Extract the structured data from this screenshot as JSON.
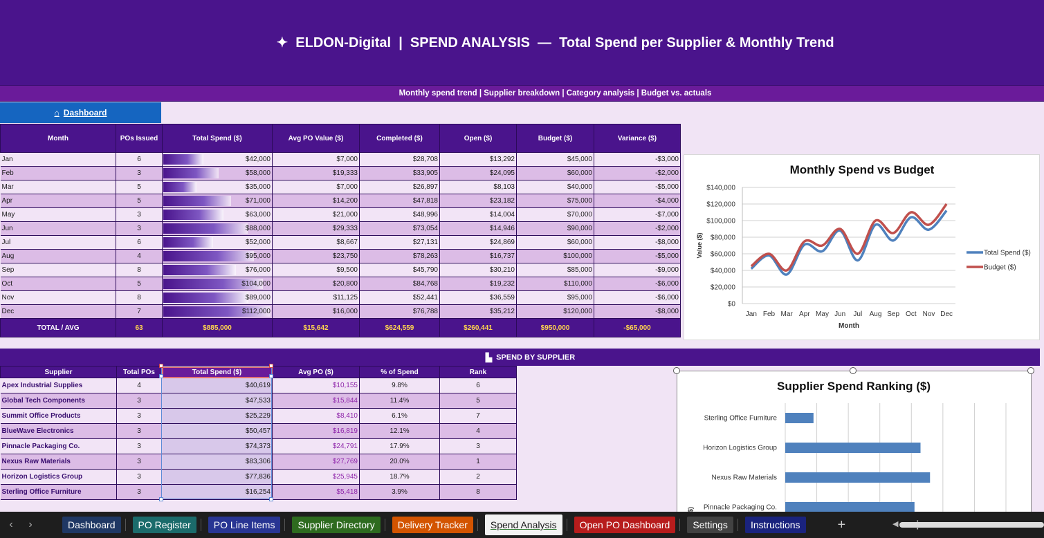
{
  "header": {
    "title": "✦  ELDON-Digital  |  SPEND ANALYSIS  —  Total Spend per Supplier & Monthly Trend",
    "subtitle": "Monthly spend trend  |  Supplier breakdown  |  Category analysis  |  Budget vs. actuals"
  },
  "dashboard_link": {
    "label": "Dashboard",
    "icon": "house-icon"
  },
  "monthly_table": {
    "headers": [
      "Month",
      "POs Issued",
      "Total Spend ($)",
      "Avg PO Value ($)",
      "Completed ($)",
      "Open ($)",
      "Budget ($)",
      "Variance ($)"
    ],
    "rows": [
      {
        "month": "Jan",
        "pos": "6",
        "spend": "$42,000",
        "avg": "$7,000",
        "completed": "$28,708",
        "open": "$13,292",
        "budget": "$45,000",
        "variance": "-$3,000",
        "spend_value": 42000
      },
      {
        "month": "Feb",
        "pos": "3",
        "spend": "$58,000",
        "avg": "$19,333",
        "completed": "$33,905",
        "open": "$24,095",
        "budget": "$60,000",
        "variance": "-$2,000",
        "spend_value": 58000
      },
      {
        "month": "Mar",
        "pos": "5",
        "spend": "$35,000",
        "avg": "$7,000",
        "completed": "$26,897",
        "open": "$8,103",
        "budget": "$40,000",
        "variance": "-$5,000",
        "spend_value": 35000
      },
      {
        "month": "Apr",
        "pos": "5",
        "spend": "$71,000",
        "avg": "$14,200",
        "completed": "$47,818",
        "open": "$23,182",
        "budget": "$75,000",
        "variance": "-$4,000",
        "spend_value": 71000
      },
      {
        "month": "May",
        "pos": "3",
        "spend": "$63,000",
        "avg": "$21,000",
        "completed": "$48,996",
        "open": "$14,004",
        "budget": "$70,000",
        "variance": "-$7,000",
        "spend_value": 63000
      },
      {
        "month": "Jun",
        "pos": "3",
        "spend": "$88,000",
        "avg": "$29,333",
        "completed": "$73,054",
        "open": "$14,946",
        "budget": "$90,000",
        "variance": "-$2,000",
        "spend_value": 88000
      },
      {
        "month": "Jul",
        "pos": "6",
        "spend": "$52,000",
        "avg": "$8,667",
        "completed": "$27,131",
        "open": "$24,869",
        "budget": "$60,000",
        "variance": "-$8,000",
        "spend_value": 52000
      },
      {
        "month": "Aug",
        "pos": "4",
        "spend": "$95,000",
        "avg": "$23,750",
        "completed": "$78,263",
        "open": "$16,737",
        "budget": "$100,000",
        "variance": "-$5,000",
        "spend_value": 95000
      },
      {
        "month": "Sep",
        "pos": "8",
        "spend": "$76,000",
        "avg": "$9,500",
        "completed": "$45,790",
        "open": "$30,210",
        "budget": "$85,000",
        "variance": "-$9,000",
        "spend_value": 76000
      },
      {
        "month": "Oct",
        "pos": "5",
        "spend": "$104,000",
        "avg": "$20,800",
        "completed": "$84,768",
        "open": "$19,232",
        "budget": "$110,000",
        "variance": "-$6,000",
        "spend_value": 104000
      },
      {
        "month": "Nov",
        "pos": "8",
        "spend": "$89,000",
        "avg": "$11,125",
        "completed": "$52,441",
        "open": "$36,559",
        "budget": "$95,000",
        "variance": "-$6,000",
        "spend_value": 89000
      },
      {
        "month": "Dec",
        "pos": "7",
        "spend": "$112,000",
        "avg": "$16,000",
        "completed": "$76,788",
        "open": "$35,212",
        "budget": "$120,000",
        "variance": "-$8,000",
        "spend_value": 112000
      }
    ],
    "total": {
      "label": "TOTAL / AVG",
      "pos": "63",
      "spend": "$885,000",
      "avg": "$15,642",
      "completed": "$624,559",
      "open": "$260,441",
      "budget": "$950,000",
      "variance": "-$65,000"
    },
    "bar_max": 112000
  },
  "supplier_banner": {
    "label": "SPEND BY SUPPLIER",
    "icon": "factory-icon"
  },
  "supplier_table": {
    "headers": [
      "Supplier",
      "Total POs",
      "Total Spend ($)",
      "Avg PO ($)",
      "% of Spend",
      "Rank"
    ],
    "rows": [
      {
        "name": "Apex Industrial Supplies",
        "pos": "4",
        "spend": "$40,619",
        "avg": "$10,155",
        "pct": "9.8%",
        "rank": "6"
      },
      {
        "name": "Global Tech Components",
        "pos": "3",
        "spend": "$47,533",
        "avg": "$15,844",
        "pct": "11.4%",
        "rank": "5"
      },
      {
        "name": "Summit Office Products",
        "pos": "3",
        "spend": "$25,229",
        "avg": "$8,410",
        "pct": "6.1%",
        "rank": "7"
      },
      {
        "name": "BlueWave Electronics",
        "pos": "3",
        "spend": "$50,457",
        "avg": "$16,819",
        "pct": "12.1%",
        "rank": "4"
      },
      {
        "name": "Pinnacle Packaging Co.",
        "pos": "3",
        "spend": "$74,373",
        "avg": "$24,791",
        "pct": "17.9%",
        "rank": "3"
      },
      {
        "name": "Nexus Raw Materials",
        "pos": "3",
        "spend": "$83,306",
        "avg": "$27,769",
        "pct": "20.0%",
        "rank": "1"
      },
      {
        "name": "Horizon Logistics Group",
        "pos": "3",
        "spend": "$77,836",
        "avg": "$25,945",
        "pct": "18.7%",
        "rank": "2"
      },
      {
        "name": "Sterling Office Furniture",
        "pos": "3",
        "spend": "$16,254",
        "avg": "$5,418",
        "pct": "3.9%",
        "rank": "8"
      }
    ]
  },
  "chart_data": [
    {
      "type": "line",
      "title": "Monthly Spend vs Budget",
      "xlabel": "Month",
      "ylabel": "Value ($)",
      "categories": [
        "Jan",
        "Feb",
        "Mar",
        "Apr",
        "May",
        "Jun",
        "Jul",
        "Aug",
        "Sep",
        "Oct",
        "Nov",
        "Dec"
      ],
      "yticks": [
        "$0",
        "$20,000",
        "$40,000",
        "$60,000",
        "$80,000",
        "$100,000",
        "$120,000",
        "$140,000"
      ],
      "ylim": [
        0,
        140000
      ],
      "grid": true,
      "legend": "right",
      "series": [
        {
          "name": "Total Spend ($)",
          "color": "#4f81bd",
          "values": [
            42000,
            58000,
            35000,
            71000,
            63000,
            88000,
            52000,
            95000,
            76000,
            104000,
            89000,
            112000
          ]
        },
        {
          "name": "Budget ($)",
          "color": "#c0504d",
          "values": [
            45000,
            60000,
            40000,
            75000,
            70000,
            90000,
            60000,
            100000,
            85000,
            110000,
            95000,
            120000
          ]
        }
      ]
    },
    {
      "type": "bar",
      "orientation": "horizontal",
      "title": "Supplier Spend Ranking ($)",
      "ylabel": "$)",
      "categories": [
        "Sterling Office Furniture",
        "Horizon Logistics Group",
        "Nexus Raw Materials",
        "Pinnacle Packaging Co."
      ],
      "values": [
        16254,
        77836,
        83306,
        74373
      ],
      "xlim": [
        0,
        100000
      ],
      "grid": true,
      "color": "#4f81bd"
    }
  ],
  "tabs": {
    "items": [
      {
        "label": "Dashboard",
        "color": "#1f3864"
      },
      {
        "label": "PO Register",
        "color": "#1b6b6b"
      },
      {
        "label": "PO Line Items",
        "color": "#283593"
      },
      {
        "label": "Supplier Directory",
        "color": "#2e6b1f"
      },
      {
        "label": "Delivery Tracker",
        "color": "#d35400"
      },
      {
        "label": "Spend Analysis",
        "color": "#f2f2f2",
        "active": true
      },
      {
        "label": "Open PO Dashboard",
        "color": "#b71c1c"
      },
      {
        "label": "Settings",
        "color": "#424242"
      },
      {
        "label": "Instructions",
        "color": "#1a237e"
      }
    ],
    "add_label": "+",
    "more_label": "⋮"
  }
}
